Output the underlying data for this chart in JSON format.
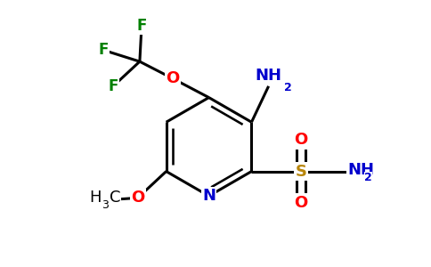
{
  "background_color": "#ffffff",
  "bond_width": 2.2,
  "atom_colors": {
    "N_ring": "#0000cd",
    "N_amino": "#0000cd",
    "O_red": "#ff0000",
    "F": "#008000",
    "S": "#b8860b",
    "C": "#000000"
  },
  "figsize": [
    4.84,
    3.0
  ],
  "dpi": 100,
  "xlim": [
    -0.5,
    4.84
  ],
  "ylim": [
    -0.2,
    3.0
  ]
}
